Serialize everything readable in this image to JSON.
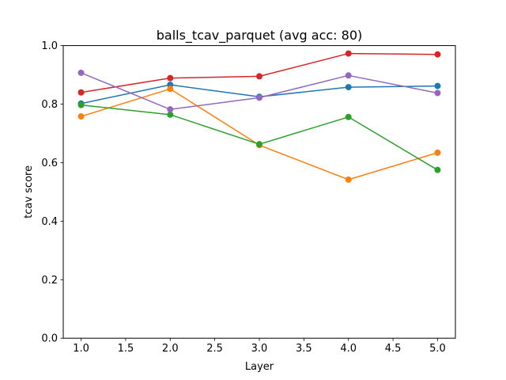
{
  "chart_data": {
    "type": "line",
    "title": "balls_tcav_parquet (avg acc: 80)",
    "xlabel": "Layer",
    "ylabel": "tcav score",
    "xlim": [
      0.8,
      5.2
    ],
    "ylim": [
      0.0,
      1.0
    ],
    "xticks": [
      1.0,
      1.5,
      2.0,
      2.5,
      3.0,
      3.5,
      4.0,
      4.5,
      5.0
    ],
    "xtick_labels": [
      "1.0",
      "1.5",
      "2.0",
      "2.5",
      "3.0",
      "3.5",
      "4.0",
      "4.5",
      "5.0"
    ],
    "yticks": [
      0.0,
      0.2,
      0.4,
      0.6,
      0.8,
      1.0
    ],
    "ytick_labels": [
      "0.0",
      "0.2",
      "0.4",
      "0.6",
      "0.8",
      "1.0"
    ],
    "grid": false,
    "x": [
      1,
      2,
      3,
      4,
      5
    ],
    "series": [
      {
        "color": "#1f77b4",
        "values": [
          0.802,
          0.866,
          0.825,
          0.858,
          0.862
        ]
      },
      {
        "color": "#ff7f0e",
        "values": [
          0.758,
          0.852,
          0.66,
          0.542,
          0.634
        ]
      },
      {
        "color": "#2ca02c",
        "values": [
          0.797,
          0.764,
          0.663,
          0.756,
          0.575
        ]
      },
      {
        "color": "#d62728",
        "values": [
          0.84,
          0.889,
          0.895,
          0.973,
          0.97
        ]
      },
      {
        "color": "#9467bd",
        "values": [
          0.907,
          0.782,
          0.822,
          0.898,
          0.838
        ]
      }
    ]
  }
}
